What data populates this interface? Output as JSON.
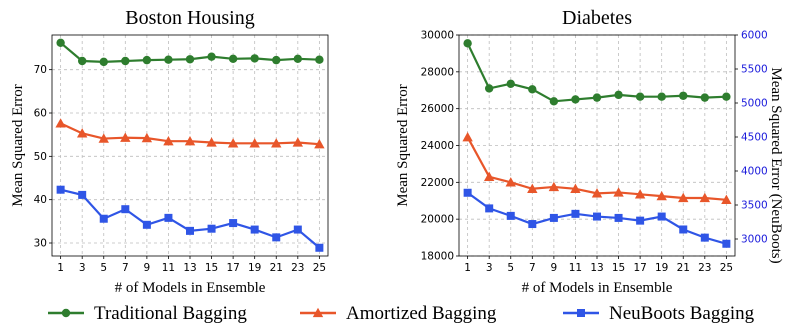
{
  "chart_data": [
    {
      "type": "line",
      "title": "Boston Housing",
      "xlabel": "# of Models in Ensemble",
      "ylabel": "Mean Squared Error",
      "x": [
        1,
        3,
        5,
        7,
        9,
        11,
        13,
        15,
        17,
        19,
        21,
        23,
        25
      ],
      "xticks": [
        1,
        3,
        5,
        7,
        9,
        11,
        13,
        15,
        17,
        19,
        21,
        23,
        25
      ],
      "ylim": [
        27,
        78
      ],
      "yticks": [
        30,
        40,
        50,
        60,
        70
      ],
      "grid": true,
      "series": [
        {
          "name": "Traditional Bagging",
          "color": "#2e7d2e",
          "marker": "circle",
          "values": [
            76.2,
            72.0,
            71.8,
            72.0,
            72.2,
            72.3,
            72.4,
            73.0,
            72.5,
            72.6,
            72.2,
            72.5,
            72.3
          ]
        },
        {
          "name": "Amortized Bagging",
          "color": "#e8562a",
          "marker": "triangle",
          "values": [
            57.6,
            55.3,
            54.1,
            54.3,
            54.2,
            53.5,
            53.5,
            53.2,
            53.0,
            53.0,
            53.0,
            53.2,
            52.8
          ]
        },
        {
          "name": "NeuBoots Bagging",
          "color": "#2f55e6",
          "marker": "square",
          "values": [
            42.3,
            41.1,
            35.6,
            37.8,
            34.2,
            35.8,
            32.8,
            33.3,
            34.6,
            33.1,
            31.3,
            33.1,
            28.9
          ]
        }
      ]
    },
    {
      "type": "line",
      "title": "Diabetes",
      "xlabel": "# of Models in Ensemble",
      "ylabel": "Mean Squared Error",
      "ylabel_right": "Mean Squared Error (NeuBoots)",
      "x": [
        1,
        3,
        5,
        7,
        9,
        11,
        13,
        15,
        17,
        19,
        21,
        23,
        25
      ],
      "xticks": [
        1,
        3,
        5,
        7,
        9,
        11,
        13,
        15,
        17,
        19,
        21,
        23,
        25
      ],
      "ylim": [
        18000,
        30000
      ],
      "yticks": [
        18000,
        20000,
        22000,
        24000,
        26000,
        28000,
        30000
      ],
      "ylim_right": [
        2750,
        6000
      ],
      "yticks_right": [
        3000,
        3500,
        4000,
        4500,
        5000,
        5500,
        6000
      ],
      "grid": true,
      "series": [
        {
          "name": "Traditional Bagging",
          "color": "#2e7d2e",
          "marker": "circle",
          "axis": "left",
          "values": [
            29550,
            27100,
            27350,
            27050,
            26400,
            26500,
            26600,
            26750,
            26650,
            26650,
            26700,
            26600,
            26650
          ]
        },
        {
          "name": "Amortized Bagging",
          "color": "#e8562a",
          "marker": "triangle",
          "axis": "left",
          "values": [
            24450,
            22300,
            22000,
            21650,
            21750,
            21650,
            21400,
            21450,
            21350,
            21250,
            21150,
            21150,
            21050
          ]
        },
        {
          "name": "NeuBoots Bagging",
          "color": "#2f55e6",
          "marker": "square",
          "axis": "right",
          "values": [
            3680,
            3450,
            3340,
            3220,
            3310,
            3370,
            3330,
            3310,
            3270,
            3330,
            3140,
            3020,
            2930
          ]
        }
      ]
    }
  ],
  "legend": {
    "position": "bottom",
    "items": [
      {
        "label": "Traditional Bagging",
        "color": "#2e7d2e",
        "marker": "circle"
      },
      {
        "label": "Amortized Bagging",
        "color": "#e8562a",
        "marker": "triangle"
      },
      {
        "label": "NeuBoots Bagging",
        "color": "#2f55e6",
        "marker": "square"
      }
    ]
  },
  "colors": {
    "right_axis": "#1a1adb"
  }
}
